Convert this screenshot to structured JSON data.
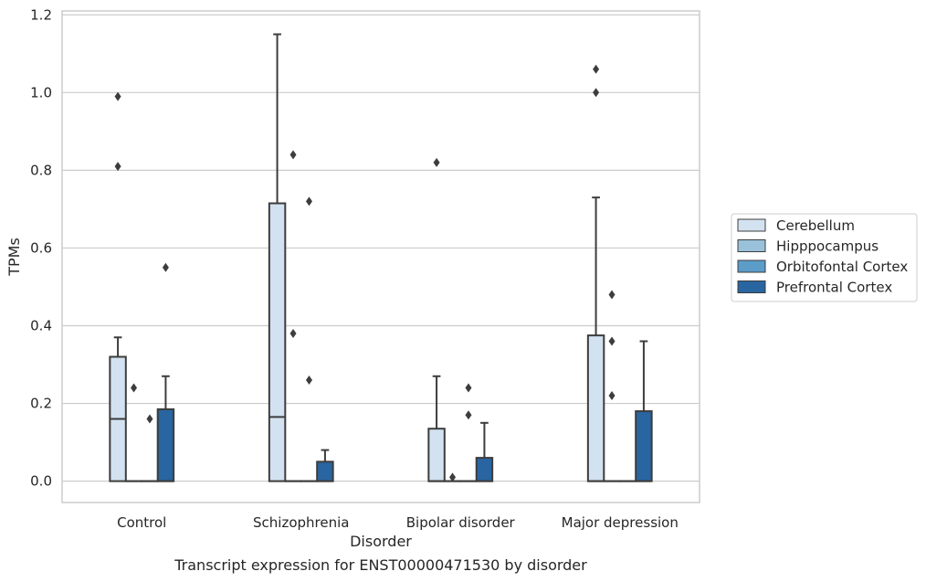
{
  "chart_data": {
    "type": "box",
    "title": "Transcript expression for ENST00000471530 by disorder",
    "xlabel": "Disorder",
    "ylabel": "TPMs",
    "ylim": [
      -0.055,
      1.21
    ],
    "yticks": [
      0.0,
      0.2,
      0.4,
      0.6,
      0.8,
      1.0,
      1.2
    ],
    "ytick_labels": [
      "0.0",
      "0.2",
      "0.4",
      "0.6",
      "0.8",
      "1.0",
      "1.2"
    ],
    "grid": "horizontal",
    "legend_position": "right",
    "categories": [
      "Control",
      "Schizophrenia",
      "Bipolar disorder",
      "Major depression"
    ],
    "series": [
      {
        "name": "Cerebellum",
        "color": "#d3e2f0",
        "boxes": [
          {
            "q1": 0.0,
            "median": 0.16,
            "q3": 0.32,
            "whisker_low": 0.0,
            "whisker_high": 0.37,
            "outliers": [
              0.81,
              0.99
            ]
          },
          {
            "q1": 0.0,
            "median": 0.165,
            "q3": 0.715,
            "whisker_low": 0.0,
            "whisker_high": 1.15,
            "outliers": []
          },
          {
            "q1": 0.0,
            "median": 0.0,
            "q3": 0.135,
            "whisker_low": 0.0,
            "whisker_high": 0.27,
            "outliers": [
              0.82
            ]
          },
          {
            "q1": 0.0,
            "median": 0.0,
            "q3": 0.375,
            "whisker_low": 0.0,
            "whisker_high": 0.73,
            "outliers": [
              1.0,
              1.06
            ]
          }
        ]
      },
      {
        "name": "Hipppocampus",
        "color": "#9ac1da",
        "boxes": [
          {
            "q1": 0.0,
            "median": 0.0,
            "q3": 0.0,
            "whisker_low": 0.0,
            "whisker_high": 0.0,
            "outliers": [
              0.24
            ]
          },
          {
            "q1": 0.0,
            "median": 0.0,
            "q3": 0.0,
            "whisker_low": 0.0,
            "whisker_high": 0.0,
            "outliers": [
              0.38,
              0.84
            ]
          },
          {
            "q1": 0.0,
            "median": 0.0,
            "q3": 0.0,
            "whisker_low": 0.0,
            "whisker_high": 0.0,
            "outliers": [
              0.01
            ]
          },
          {
            "q1": 0.0,
            "median": 0.0,
            "q3": 0.0,
            "whisker_low": 0.0,
            "whisker_high": 0.0,
            "outliers": [
              0.22,
              0.36,
              0.48
            ]
          }
        ]
      },
      {
        "name": "Orbitofontal Cortex",
        "color": "#5b9cc9",
        "boxes": [
          {
            "q1": 0.0,
            "median": 0.0,
            "q3": 0.0,
            "whisker_low": 0.0,
            "whisker_high": 0.0,
            "outliers": [
              0.16
            ]
          },
          {
            "q1": 0.0,
            "median": 0.0,
            "q3": 0.0,
            "whisker_low": 0.0,
            "whisker_high": 0.0,
            "outliers": [
              0.26,
              0.72
            ]
          },
          {
            "q1": 0.0,
            "median": 0.0,
            "q3": 0.0,
            "whisker_low": 0.0,
            "whisker_high": 0.0,
            "outliers": [
              0.17,
              0.24
            ]
          },
          {
            "q1": 0.0,
            "median": 0.0,
            "q3": 0.0,
            "whisker_low": 0.0,
            "whisker_high": 0.0,
            "outliers": []
          }
        ]
      },
      {
        "name": "Prefrontal Cortex",
        "color": "#2865a1",
        "boxes": [
          {
            "q1": 0.0,
            "median": 0.0,
            "q3": 0.185,
            "whisker_low": 0.0,
            "whisker_high": 0.27,
            "outliers": [
              0.55
            ]
          },
          {
            "q1": 0.0,
            "median": 0.0,
            "q3": 0.05,
            "whisker_low": 0.0,
            "whisker_high": 0.08,
            "outliers": []
          },
          {
            "q1": 0.0,
            "median": 0.0,
            "q3": 0.06,
            "whisker_low": 0.0,
            "whisker_high": 0.15,
            "outliers": []
          },
          {
            "q1": 0.0,
            "median": 0.0,
            "q3": 0.18,
            "whisker_low": 0.0,
            "whisker_high": 0.36,
            "outliers": []
          }
        ]
      }
    ]
  }
}
